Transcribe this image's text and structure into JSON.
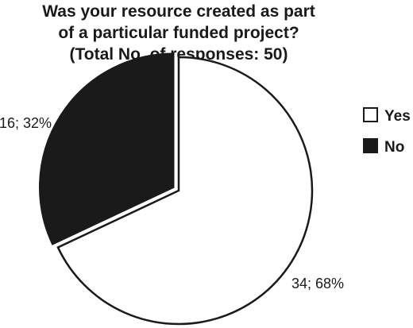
{
  "chart_data": {
    "type": "pie",
    "title": [
      "Was your resource created as part",
      "of a particular funded project?",
      "(Total No. of responses: 50)"
    ],
    "slices": [
      {
        "name": "Yes",
        "value": 34,
        "label": "34; 68%",
        "color": "#ffffff"
      },
      {
        "name": "No",
        "value": 16,
        "label": "16; 32%",
        "color": "#1a1a1a"
      }
    ],
    "total": 50,
    "legend_position": "right",
    "exploded": "No",
    "outline_color": "#1a1a1a"
  }
}
